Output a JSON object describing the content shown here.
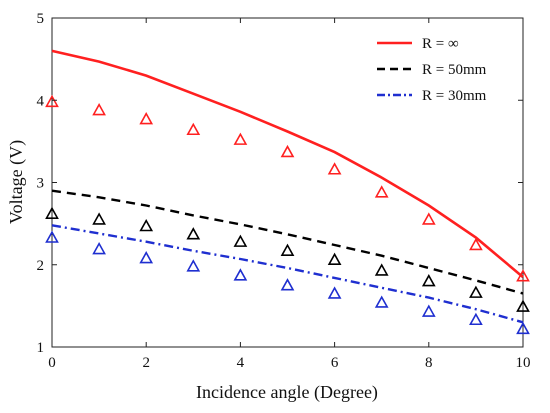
{
  "chart_data": {
    "type": "line",
    "title": "",
    "xlabel": "Incidence angle (Degree)",
    "ylabel": "Voltage (V)",
    "xlim": [
      0,
      10
    ],
    "ylim": [
      1,
      5
    ],
    "xticks": [
      0,
      2,
      4,
      6,
      8,
      10
    ],
    "yticks": [
      1,
      2,
      3,
      4,
      5
    ],
    "grid": false,
    "legend_position": "top-right",
    "x": [
      0,
      1,
      2,
      3,
      4,
      5,
      6,
      7,
      8,
      9,
      10
    ],
    "series": [
      {
        "name": "R = ∞",
        "style": "solid",
        "color": "#ff2020",
        "values": [
          4.6,
          4.47,
          4.3,
          4.08,
          3.86,
          3.62,
          3.37,
          3.06,
          2.72,
          2.33,
          1.85
        ]
      },
      {
        "name": "R = 50mm",
        "style": "dashed",
        "color": "#000000",
        "values": [
          2.9,
          2.82,
          2.72,
          2.6,
          2.49,
          2.37,
          2.24,
          2.11,
          1.96,
          1.81,
          1.65
        ]
      },
      {
        "name": "R = 30mm",
        "style": "dashdot",
        "color": "#1f2fd0",
        "values": [
          2.48,
          2.38,
          2.28,
          2.17,
          2.07,
          1.96,
          1.84,
          1.72,
          1.6,
          1.46,
          1.3
        ]
      }
    ],
    "markers": [
      {
        "color": "#ff2020",
        "shape": "triangle",
        "values": [
          3.98,
          3.88,
          3.77,
          3.64,
          3.52,
          3.37,
          3.16,
          2.88,
          2.55,
          2.24,
          1.86
        ]
      },
      {
        "color": "#000000",
        "shape": "triangle",
        "values": [
          2.62,
          2.55,
          2.47,
          2.37,
          2.28,
          2.17,
          2.06,
          1.93,
          1.8,
          1.66,
          1.49
        ]
      },
      {
        "color": "#1f2fd0",
        "shape": "triangle",
        "values": [
          2.33,
          2.19,
          2.08,
          1.98,
          1.87,
          1.75,
          1.65,
          1.54,
          1.43,
          1.33,
          1.22
        ]
      }
    ]
  }
}
